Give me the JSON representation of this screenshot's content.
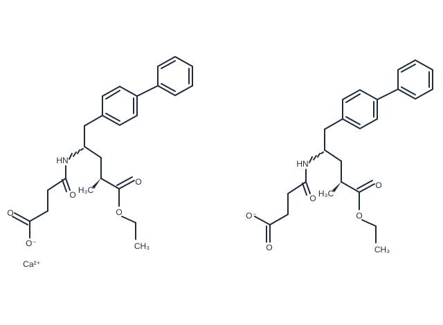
{
  "molecules": [
    {
      "atoms": {
        "nh": "HN",
        "amide_o": "O",
        "ester_carbonyl_o": "O",
        "ester_o": "O",
        "methyl": "H₃C",
        "ethyl_methyl": "CH₃",
        "acid_o": "O",
        "acid_o_minus": "O⁻"
      }
    },
    {
      "atoms": {
        "nh": "HN",
        "amide_o": "O",
        "ester_carbonyl_o": "O",
        "ester_o": "O",
        "methyl": "H₃C",
        "ethyl_methyl": "CH₃",
        "acid_o": "O",
        "acid_o_minus": "O⁻"
      }
    }
  ],
  "ion": "Ca²⁺"
}
